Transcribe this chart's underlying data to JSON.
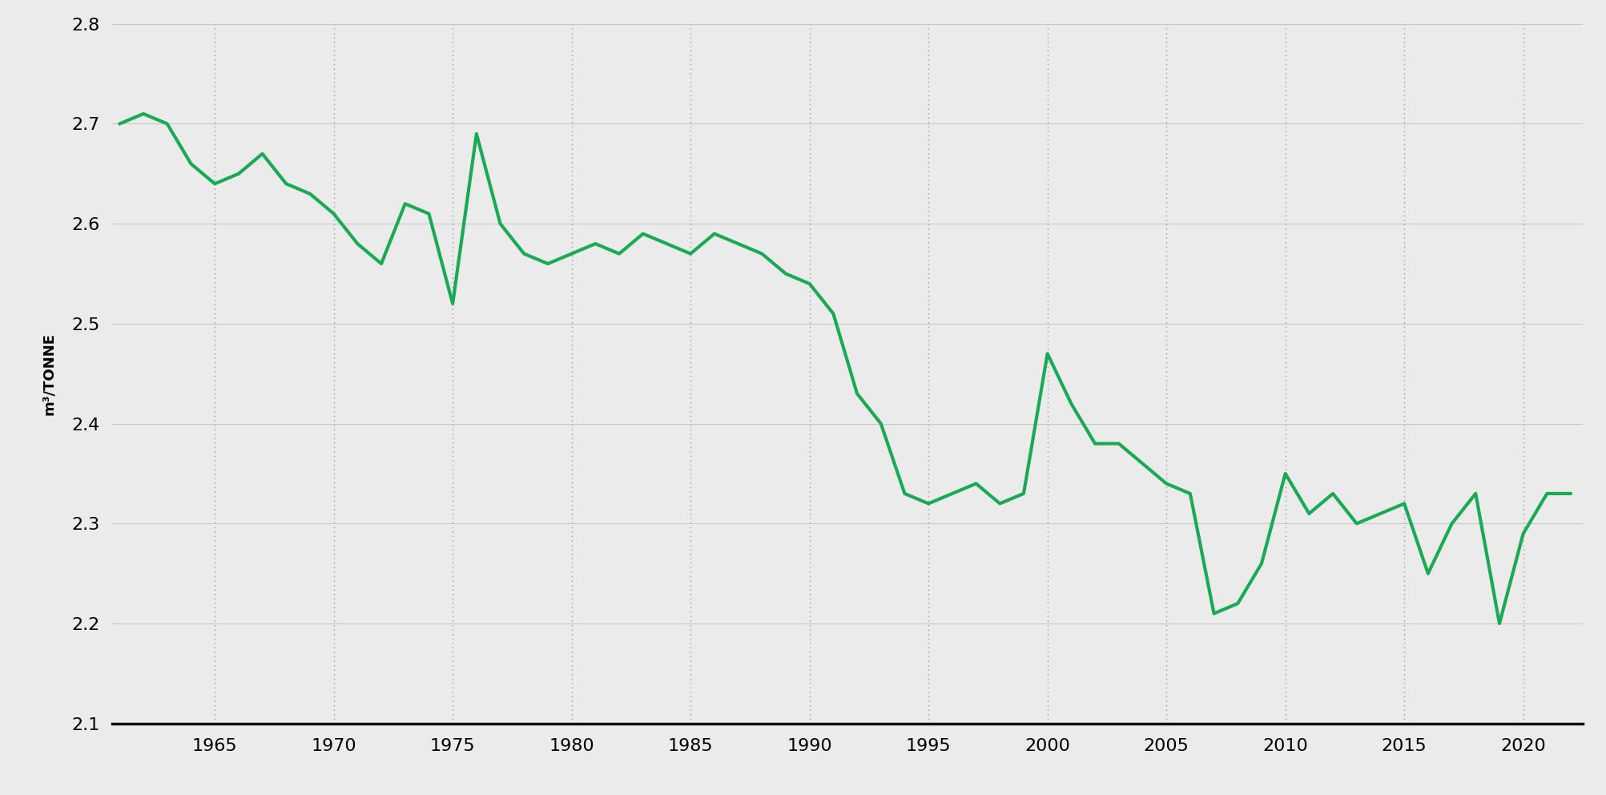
{
  "years": [
    1961,
    1962,
    1963,
    1964,
    1965,
    1966,
    1967,
    1968,
    1969,
    1970,
    1971,
    1972,
    1973,
    1974,
    1975,
    1976,
    1977,
    1978,
    1979,
    1980,
    1981,
    1982,
    1983,
    1984,
    1985,
    1986,
    1987,
    1988,
    1989,
    1990,
    1991,
    1992,
    1993,
    1994,
    1995,
    1996,
    1997,
    1998,
    1999,
    2000,
    2001,
    2002,
    2003,
    2004,
    2005,
    2006,
    2007,
    2008,
    2009,
    2010,
    2011,
    2012,
    2013,
    2014,
    2015,
    2016,
    2017,
    2018,
    2019,
    2020,
    2021,
    2022
  ],
  "values": [
    2.7,
    2.71,
    2.7,
    2.66,
    2.64,
    2.65,
    2.67,
    2.64,
    2.63,
    2.61,
    2.58,
    2.56,
    2.62,
    2.61,
    2.52,
    2.69,
    2.6,
    2.57,
    2.56,
    2.57,
    2.58,
    2.57,
    2.59,
    2.58,
    2.57,
    2.59,
    2.58,
    2.57,
    2.55,
    2.54,
    2.51,
    2.43,
    2.4,
    2.33,
    2.32,
    2.33,
    2.34,
    2.32,
    2.33,
    2.47,
    2.42,
    2.38,
    2.38,
    2.36,
    2.34,
    2.33,
    2.21,
    2.22,
    2.26,
    2.35,
    2.31,
    2.33,
    2.3,
    2.31,
    2.32,
    2.25,
    2.3,
    2.33,
    2.2,
    2.29,
    2.33,
    2.33
  ],
  "line_color": "#1aaa55",
  "line_width": 3.0,
  "ylim": [
    2.1,
    2.8
  ],
  "xlim_left": 1961,
  "xlim_right": 2022.5,
  "yticks": [
    2.1,
    2.2,
    2.3,
    2.4,
    2.5,
    2.6,
    2.7,
    2.8
  ],
  "xticks": [
    1965,
    1970,
    1975,
    1980,
    1985,
    1990,
    1995,
    2000,
    2005,
    2010,
    2015,
    2020
  ],
  "ylabel": "m³/TONNE",
  "background_color": "#ebebeb",
  "hgrid_color": "#c8c8c8",
  "vgrid_color": "#9a9a9a",
  "bottom_spine_color": "#111111",
  "tick_label_fontsize": 16,
  "ylabel_fontsize": 13
}
